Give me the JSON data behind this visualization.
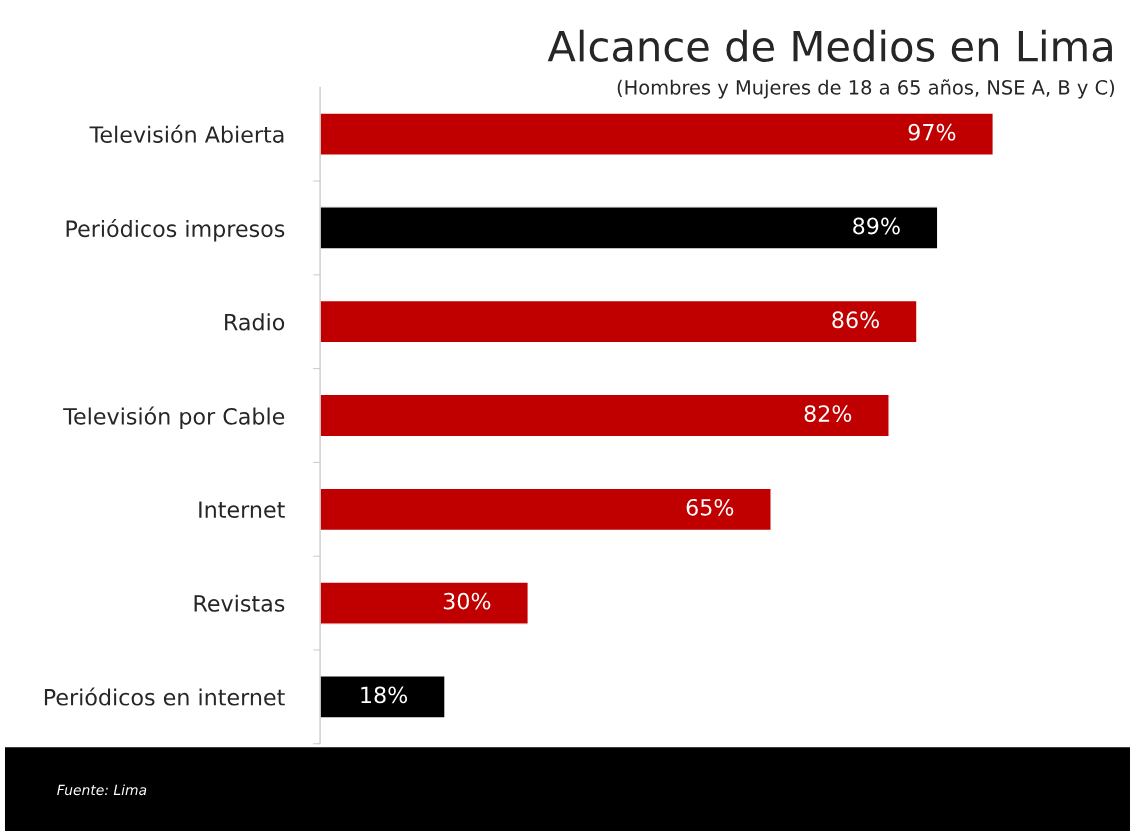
{
  "chart_data": {
    "type": "bar",
    "orientation": "horizontal",
    "title": "Alcance de Medios en Lima",
    "subtitle": "(Hombres y Mujeres de 18 a 65 años, NSE A, B y C)",
    "categories": [
      "Televisión Abierta",
      "Periódicos impresos",
      "Radio",
      "Televisión por Cable",
      "Internet",
      "Revistas",
      "Periódicos en internet"
    ],
    "values": [
      97,
      89,
      86,
      82,
      65,
      30,
      18
    ],
    "colors": [
      "#c00000",
      "#000000",
      "#c00000",
      "#c00000",
      "#c00000",
      "#c00000",
      "#000000"
    ],
    "value_labels": [
      "97%",
      "89%",
      "86%",
      "82%",
      "65%",
      "30%",
      "18%"
    ],
    "tick_labels": "y",
    "grid": false,
    "legend": false,
    "annotations": [
      "Fuente: Lima"
    ]
  }
}
